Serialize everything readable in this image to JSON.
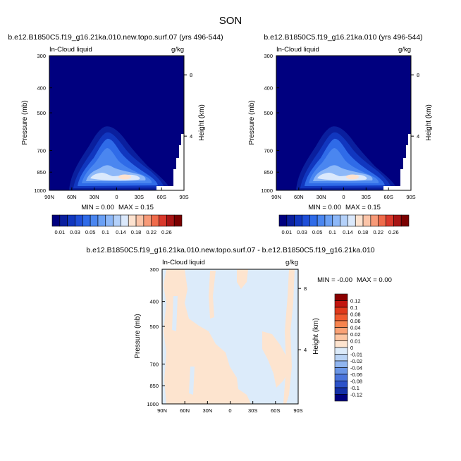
{
  "season_title": "SON",
  "chart_data": [
    {
      "type": "contour",
      "panel": "top-left",
      "title": "b.e12.B1850C5.f19_g16.21ka.010.new.topo.surf.07 (yrs 496-544)",
      "left_label": "In-Cloud liquid",
      "units": "g/kg",
      "ylabel": "Pressure (mb)",
      "y2label": "Height (km)",
      "x_ticks": [
        "90N",
        "60N",
        "30N",
        "0",
        "30S",
        "60S",
        "90S"
      ],
      "y_ticks": [
        "300",
        "400",
        "500",
        "700",
        "850",
        "1000"
      ],
      "y2_ticks": [
        "8",
        "4"
      ],
      "min_label": "MIN =  0.00",
      "max_label": "MAX =  0.15",
      "min": 0.0,
      "max": 0.15,
      "colorbar_labels": [
        "0.01",
        "0.03",
        "0.05",
        "0.1",
        "0.14",
        "0.18",
        "0.22",
        "0.26"
      ],
      "colorbar_levels": [
        0.01,
        0.02,
        0.03,
        0.04,
        0.05,
        0.075,
        0.1,
        0.12,
        0.14,
        0.16,
        0.18,
        0.2,
        0.22,
        0.24,
        0.26
      ],
      "colors": [
        "#00007f",
        "#0a1f9e",
        "#1137bf",
        "#1f4fd8",
        "#2f6be8",
        "#4a86f0",
        "#6aa0f5",
        "#8db8f8",
        "#b4d1fa",
        "#dbe9fc",
        "#fde2cf",
        "#fbc4a8",
        "#f79a78",
        "#ef6b4b",
        "#d9382b",
        "#a81414",
        "#7a0000"
      ]
    },
    {
      "type": "contour",
      "panel": "top-right",
      "title": "b.e12.B1850C5.f19_g16.21ka.010 (yrs 496-544)",
      "left_label": "In-Cloud liquid",
      "units": "g/kg",
      "ylabel": "Pressure (mb)",
      "y2label": "Height (km)",
      "x_ticks": [
        "90N",
        "60N",
        "30N",
        "0",
        "30S",
        "60S",
        "90S"
      ],
      "y_ticks": [
        "300",
        "400",
        "500",
        "700",
        "850",
        "1000"
      ],
      "y2_ticks": [
        "8",
        "4"
      ],
      "min_label": "MIN =  0.00",
      "max_label": "MAX =  0.15",
      "min": 0.0,
      "max": 0.15,
      "colorbar_labels": [
        "0.01",
        "0.03",
        "0.05",
        "0.1",
        "0.14",
        "0.18",
        "0.22",
        "0.26"
      ],
      "colorbar_levels": [
        0.01,
        0.02,
        0.03,
        0.04,
        0.05,
        0.075,
        0.1,
        0.12,
        0.14,
        0.16,
        0.18,
        0.2,
        0.22,
        0.24,
        0.26
      ],
      "colors": [
        "#00007f",
        "#0a1f9e",
        "#1137bf",
        "#1f4fd8",
        "#2f6be8",
        "#4a86f0",
        "#6aa0f5",
        "#8db8f8",
        "#b4d1fa",
        "#dbe9fc",
        "#fde2cf",
        "#fbc4a8",
        "#f79a78",
        "#ef6b4b",
        "#d9382b",
        "#a81414",
        "#7a0000"
      ]
    },
    {
      "type": "contour",
      "panel": "bottom-difference",
      "title": "b.e12.B1850C5.f19_g16.21ka.010.new.topo.surf.07 - b.e12.B1850C5.f19_g16.21ka.010",
      "left_label": "In-Cloud liquid",
      "units": "g/kg",
      "ylabel": "Pressure (mb)",
      "y2label": "Height (km)",
      "x_ticks": [
        "90N",
        "60N",
        "30N",
        "0",
        "30S",
        "60S",
        "90S"
      ],
      "y_ticks": [
        "300",
        "400",
        "500",
        "700",
        "850",
        "1000"
      ],
      "y2_ticks": [
        "8",
        "4"
      ],
      "min_label": "MIN = -0.00",
      "max_label": "MAX =  0.00",
      "min": -0.0,
      "max": 0.0,
      "colorbar_labels": [
        "0.12",
        "0.1",
        "0.08",
        "0.06",
        "0.04",
        "0.02",
        "0.01",
        "0",
        "-0.01",
        "-0.02",
        "-0.04",
        "-0.06",
        "-0.08",
        "-0.1",
        "-0.12"
      ],
      "colorbar_levels": [
        0.12,
        0.1,
        0.08,
        0.06,
        0.04,
        0.02,
        0.01,
        0,
        -0.01,
        -0.02,
        -0.04,
        -0.06,
        -0.08,
        -0.1,
        -0.12
      ],
      "colors": [
        "#8b0000",
        "#c2150f",
        "#e03a1c",
        "#f05a2f",
        "#f7844f",
        "#faa276",
        "#fcc6a3",
        "#fde4cf",
        "#dcebfa",
        "#b9d3f5",
        "#90b5ef",
        "#6a95e6",
        "#4a74db",
        "#2c52c9",
        "#1430a8",
        "#00007f"
      ]
    }
  ]
}
